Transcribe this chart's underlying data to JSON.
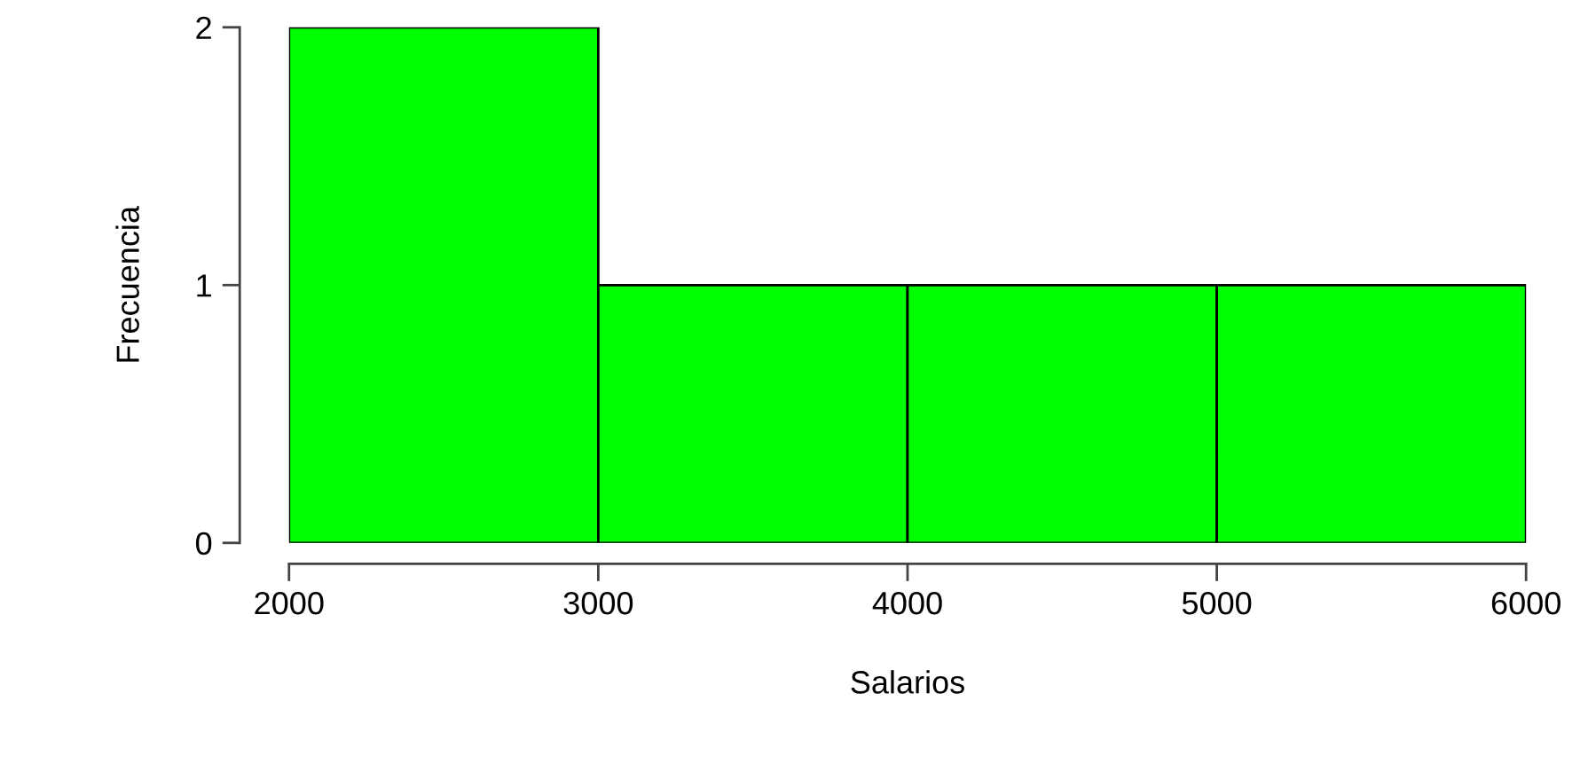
{
  "chart_data": {
    "type": "histogram",
    "xlabel": "Salarios",
    "ylabel": "Frecuencia",
    "bins": [
      2000,
      3000,
      4000,
      5000,
      6000
    ],
    "values": [
      2,
      1,
      1,
      1
    ],
    "color": "#00ff00",
    "xlim": [
      2000,
      6000
    ],
    "xticks": [
      2000,
      3000,
      4000,
      5000,
      6000
    ],
    "ylim": [
      0,
      2
    ],
    "yticks": [
      0,
      1,
      2
    ],
    "grid": false
  }
}
